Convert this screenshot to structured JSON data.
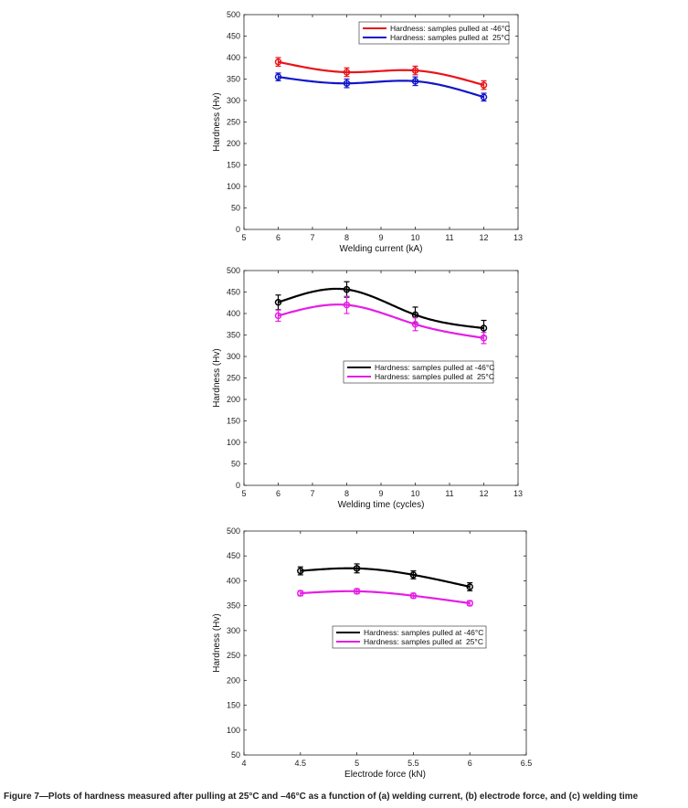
{
  "caption": "Figure 7—Plots of hardness measured after pulling at 25°C and –46°C as a function of (a) welding current, (b) electrode force, and (c) welding time",
  "chart_data": [
    {
      "type": "line",
      "xlabel": "Welding current (kA)",
      "ylabel": "Hardness (Hv)",
      "xlim": [
        5,
        13
      ],
      "ylim": [
        0,
        500
      ],
      "xticks": [
        "5",
        "6",
        "7",
        "8",
        "9",
        "10",
        "11",
        "12",
        "13"
      ],
      "yticks": [
        "0",
        "50",
        "100",
        "150",
        "200",
        "250",
        "300",
        "350",
        "400",
        "450",
        "500"
      ],
      "legend_position": "top-right",
      "series": [
        {
          "name": "Hardness: samples pulled at -46°C",
          "color": "#e8141a",
          "x": [
            6,
            8,
            10,
            12
          ],
          "values": [
            390,
            366,
            370,
            336
          ],
          "errors": [
            10,
            10,
            10,
            10
          ]
        },
        {
          "name": "Hardness: samples pulled at  25°C",
          "color": "#1216c9",
          "x": [
            6,
            8,
            10,
            12
          ],
          "values": [
            355,
            340,
            345,
            308
          ],
          "errors": [
            9,
            10,
            10,
            9
          ]
        }
      ]
    },
    {
      "type": "line",
      "xlabel": "Welding time (cycles)",
      "ylabel": "Hardness (Hv)",
      "xlim": [
        5,
        13
      ],
      "ylim": [
        0,
        500
      ],
      "xticks": [
        "5",
        "6",
        "7",
        "8",
        "9",
        "10",
        "11",
        "12",
        "13"
      ],
      "yticks": [
        "0",
        "50",
        "100",
        "150",
        "200",
        "250",
        "300",
        "350",
        "400",
        "450",
        "500"
      ],
      "legend_position": "center-right",
      "series": [
        {
          "name": "Hardness: samples pulled at -46°C",
          "color": "#000000",
          "x": [
            6,
            8,
            10,
            12
          ],
          "values": [
            426,
            456,
            397,
            366
          ],
          "errors": [
            17,
            18,
            18,
            18
          ]
        },
        {
          "name": "Hardness: samples pulled at  25°C",
          "color": "#e51ee5",
          "x": [
            6,
            8,
            10,
            12
          ],
          "values": [
            395,
            420,
            375,
            343
          ],
          "errors": [
            13,
            20,
            15,
            13
          ]
        }
      ]
    },
    {
      "type": "line",
      "xlabel": "Electrode force (kN)",
      "ylabel": "Hardness (Hv)",
      "xlim": [
        4,
        6.5
      ],
      "ylim": [
        50,
        500
      ],
      "xticks": [
        "4",
        "4.5",
        "5",
        "5.5",
        "6",
        "6.5"
      ],
      "yticks": [
        "50",
        "100",
        "150",
        "200",
        "250",
        "300",
        "350",
        "400",
        "450",
        "500"
      ],
      "legend_position": "center-right",
      "series": [
        {
          "name": "Hardness: samples pulled at -46°C",
          "color": "#000000",
          "x": [
            4.5,
            5,
            5.5,
            6
          ],
          "values": [
            420,
            425,
            412,
            388
          ],
          "errors": [
            8,
            9,
            8,
            8
          ]
        },
        {
          "name": "Hardness: samples pulled at  25°C",
          "color": "#e51ee5",
          "x": [
            4.5,
            5,
            5.5,
            6
          ],
          "values": [
            375,
            379,
            370,
            355
          ],
          "errors": [
            5,
            5,
            5,
            5
          ]
        }
      ]
    }
  ]
}
